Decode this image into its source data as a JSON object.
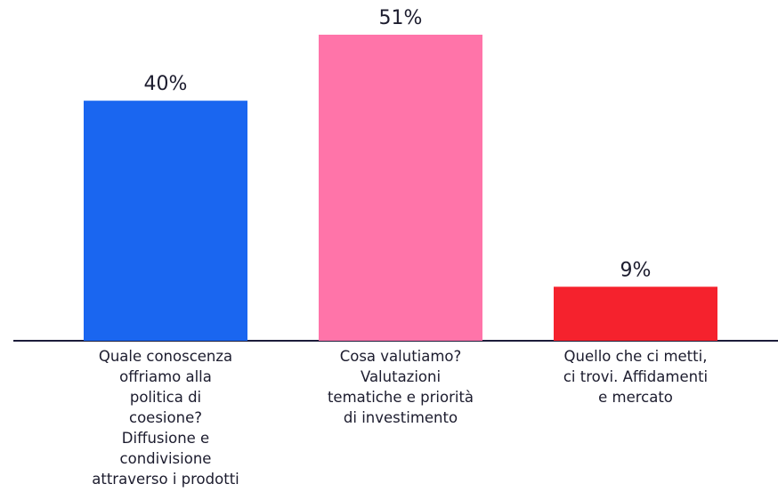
{
  "chart_data": {
    "type": "bar",
    "categories": [
      "Quale conoscenza\noffriamo alla\npolitica di\ncoesione?\nDiffusione e\ncondivisione\nattraverso i prodotti",
      "Cosa valutiamo?\nValutazioni\ntematiche e priorità\ndi investimento",
      "Quello che ci metti,\nci trovi. Affidamenti\ne mercato"
    ],
    "values": [
      40,
      51,
      9
    ],
    "value_labels": [
      "40%",
      "51%",
      "9%"
    ],
    "colors": [
      "#1a66f0",
      "#ff74a9",
      "#f5222d"
    ]
  }
}
